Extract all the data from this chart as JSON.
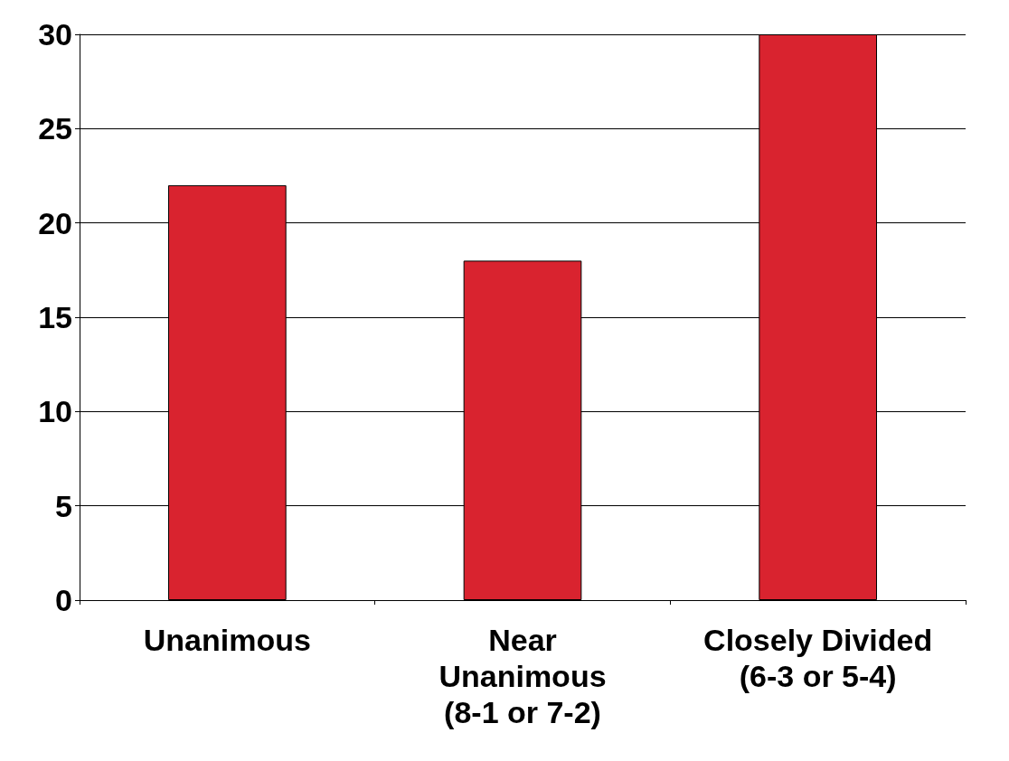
{
  "chart_data": {
    "type": "bar",
    "categories": [
      "Unanimous",
      "Near\nUnanimous\n(8-1 or 7-2)",
      "Closely Divided\n(6-3 or 5-4)"
    ],
    "values": [
      22,
      18,
      30
    ],
    "color": "#d9232f",
    "ylim": [
      0,
      30
    ],
    "yticks": [
      0,
      5,
      10,
      15,
      20,
      25,
      30
    ],
    "grid": "y"
  }
}
